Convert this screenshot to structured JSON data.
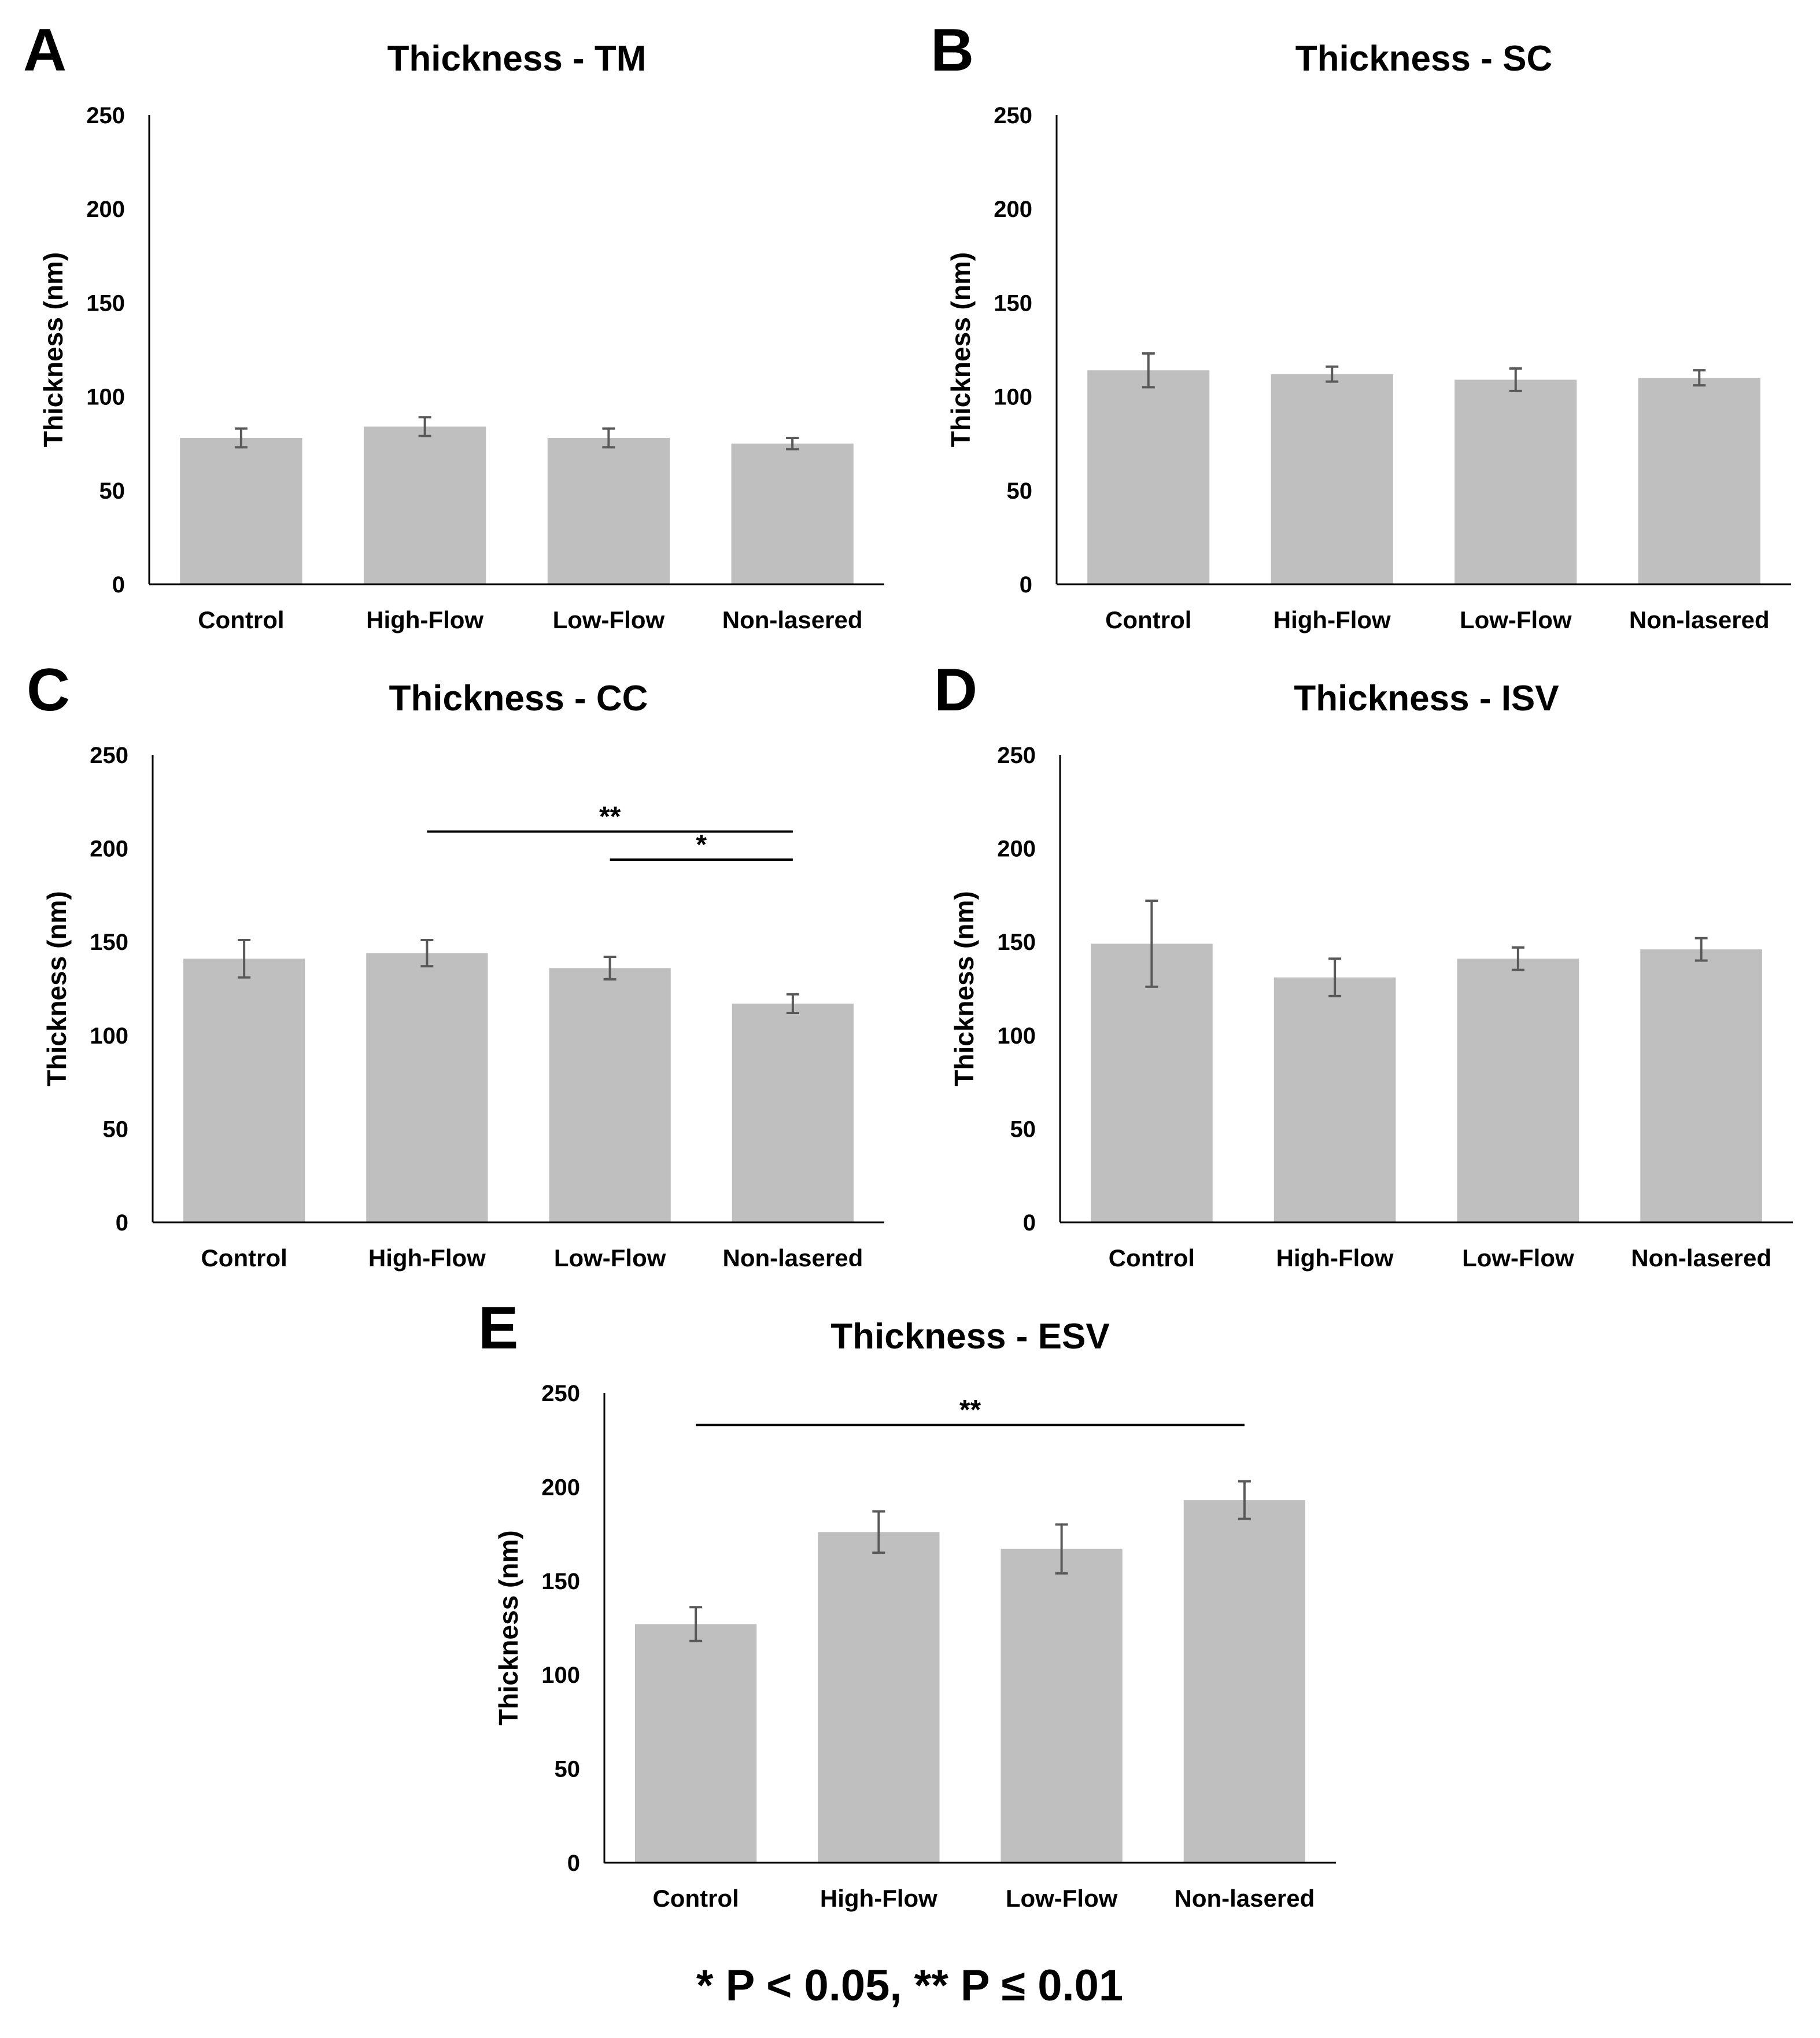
{
  "figure": {
    "footnote": "* P < 0.05, ** P ≤ 0.01"
  },
  "colors": {
    "bar": "#bfbfbf",
    "error_bar": "#595959",
    "axis": "#000000",
    "text": "#000000"
  },
  "chart_data": [
    {
      "panel": "A",
      "type": "bar",
      "title": "Thickness - TM",
      "xlabel": "",
      "ylabel": "Thickness (nm)",
      "ylim": [
        0,
        250
      ],
      "yticks": [
        0,
        50,
        100,
        150,
        200,
        250
      ],
      "categories": [
        "Control",
        "High-Flow",
        "Low-Flow",
        "Non-lasered"
      ],
      "values": [
        78,
        84,
        78,
        75
      ],
      "errors": [
        5,
        5,
        5,
        3
      ],
      "grid": false,
      "legend": "none",
      "significance": []
    },
    {
      "panel": "B",
      "type": "bar",
      "title": "Thickness - SC",
      "xlabel": "",
      "ylabel": "Thickness (nm)",
      "ylim": [
        0,
        250
      ],
      "yticks": [
        0,
        50,
        100,
        150,
        200,
        250
      ],
      "categories": [
        "Control",
        "High-Flow",
        "Low-Flow",
        "Non-lasered"
      ],
      "values": [
        114,
        112,
        109,
        110
      ],
      "errors": [
        9,
        4,
        6,
        4
      ],
      "grid": false,
      "legend": "none",
      "significance": []
    },
    {
      "panel": "C",
      "type": "bar",
      "title": "Thickness - CC",
      "xlabel": "",
      "ylabel": "Thickness (nm)",
      "ylim": [
        0,
        250
      ],
      "yticks": [
        0,
        50,
        100,
        150,
        200,
        250
      ],
      "categories": [
        "Control",
        "High-Flow",
        "Low-Flow",
        "Non-lasered"
      ],
      "values": [
        141,
        144,
        136,
        117
      ],
      "errors": [
        10,
        7,
        6,
        5
      ],
      "grid": false,
      "legend": "none",
      "significance": [
        {
          "from": 1,
          "to": 3,
          "label": "**",
          "y": 209
        },
        {
          "from": 2,
          "to": 3,
          "label": "*",
          "y": 194
        }
      ]
    },
    {
      "panel": "D",
      "type": "bar",
      "title": "Thickness - ISV",
      "xlabel": "",
      "ylabel": "Thickness (nm)",
      "ylim": [
        0,
        250
      ],
      "yticks": [
        0,
        50,
        100,
        150,
        200,
        250
      ],
      "categories": [
        "Control",
        "High-Flow",
        "Low-Flow",
        "Non-lasered"
      ],
      "values": [
        149,
        131,
        141,
        146
      ],
      "errors": [
        23,
        10,
        6,
        6
      ],
      "grid": false,
      "legend": "none",
      "significance": []
    },
    {
      "panel": "E",
      "type": "bar",
      "title": "Thickness - ESV",
      "xlabel": "",
      "ylabel": "Thickness (nm)",
      "ylim": [
        0,
        250
      ],
      "yticks": [
        0,
        50,
        100,
        150,
        200,
        250
      ],
      "categories": [
        "Control",
        "High-Flow",
        "Low-Flow",
        "Non-lasered"
      ],
      "values": [
        127,
        176,
        167,
        193
      ],
      "errors": [
        9,
        11,
        13,
        10
      ],
      "grid": false,
      "legend": "none",
      "significance": [
        {
          "from": 0,
          "to": 3,
          "label": "**",
          "y": 233
        }
      ]
    }
  ]
}
